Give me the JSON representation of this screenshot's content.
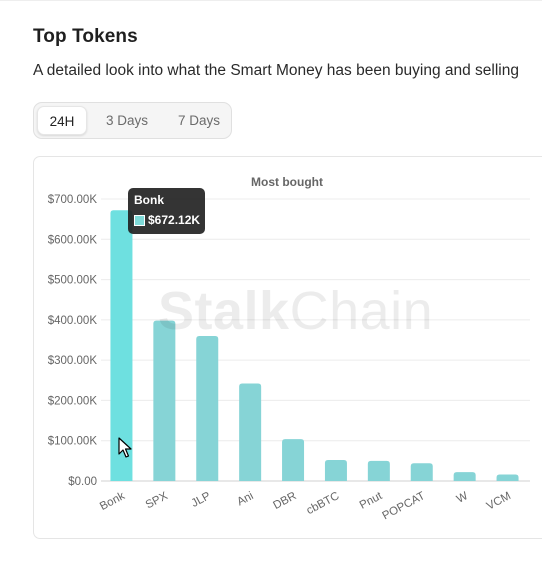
{
  "section": {
    "title": "Top Tokens",
    "subtitle": "A detailed look into what the Smart Money has been buying and selling"
  },
  "tabs": [
    {
      "label": "24H",
      "active": true
    },
    {
      "label": "3 Days",
      "active": false
    },
    {
      "label": "7 Days",
      "active": false
    }
  ],
  "watermark": {
    "bold": "Stalk",
    "light": "Chain"
  },
  "tooltip": {
    "title": "Bonk",
    "value": "$672.12K"
  },
  "colors": {
    "highlight_bar": "#6ee0e0",
    "bar": "#86d4d6",
    "tooltip_bg": "#1e1e1e"
  },
  "chart_data": {
    "type": "bar",
    "title": "Most bought",
    "categories": [
      "Bonk",
      "SPX",
      "JLP",
      "Ani",
      "DBR",
      "cbBTC",
      "Pnut",
      "POPCAT",
      "W",
      "VCM"
    ],
    "values": [
      672120,
      398000,
      360000,
      242000,
      104000,
      52000,
      50000,
      44000,
      22000,
      16000
    ],
    "highlighted_category": "Bonk",
    "y_ticks": [
      0,
      100000,
      200000,
      300000,
      400000,
      500000,
      600000,
      700000
    ],
    "y_tick_labels": [
      "$0.00",
      "$100.00K",
      "$200.00K",
      "$300.00K",
      "$400.00K",
      "$500.00K",
      "$600.00K",
      "$700.00K"
    ],
    "ylim": [
      0,
      700000
    ],
    "xlabel": "",
    "ylabel": "",
    "grid": true,
    "legend": "none"
  }
}
